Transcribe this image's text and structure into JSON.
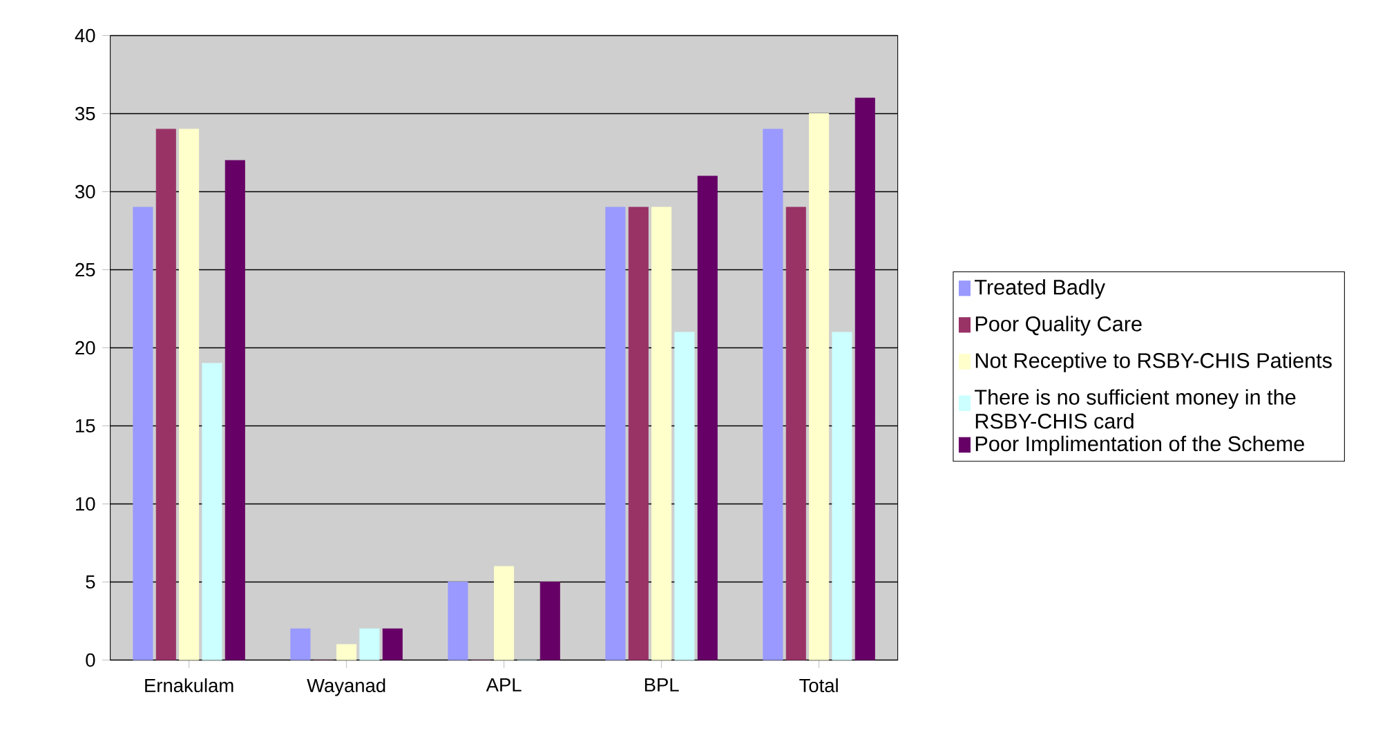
{
  "chart_data": {
    "type": "bar",
    "categories": [
      "Ernakulam",
      "Wayanad",
      "APL",
      "BPL",
      "Total"
    ],
    "series": [
      {
        "name": "Treated Badly",
        "color": "#9999ff",
        "values": [
          29,
          2,
          5,
          29,
          34
        ]
      },
      {
        "name": "Poor Quality Care",
        "color": "#993366",
        "values": [
          34,
          0,
          0,
          29,
          29
        ]
      },
      {
        "name": "Not Receptive to RSBY-CHIS Patients",
        "color": "#ffffcc",
        "values": [
          34,
          1,
          6,
          29,
          35
        ]
      },
      {
        "name": "There is no sufficient money in the RSBY-CHIS card",
        "color": "#ccffff",
        "values": [
          19,
          2,
          0,
          21,
          21
        ]
      },
      {
        "name": "Poor Implimentation of the Scheme",
        "color": "#660066",
        "values": [
          32,
          2,
          5,
          31,
          36
        ]
      }
    ],
    "ylim": [
      0,
      40
    ],
    "yticks": [
      0,
      5,
      10,
      15,
      20,
      25,
      30,
      35,
      40
    ],
    "grid": "y",
    "legend": "right"
  }
}
